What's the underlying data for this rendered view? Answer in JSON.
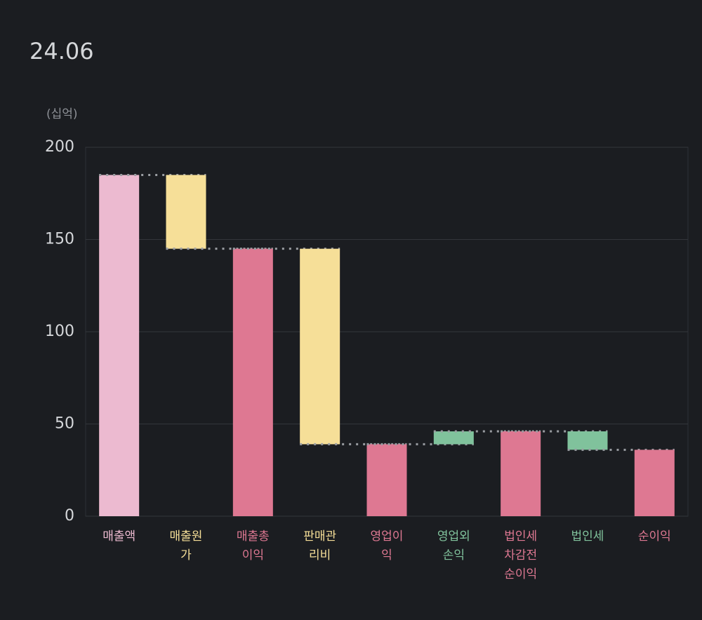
{
  "chart_data": {
    "type": "waterfall",
    "title": "24.06",
    "y_label": "(십억)",
    "categories": [
      "매출액",
      "매출원가",
      "매출총이익",
      "판매관리비",
      "영업이익",
      "영업외손익",
      "법인세차감전순이익",
      "법인세",
      "순이익"
    ],
    "values": [
      185,
      -40,
      145,
      -106,
      39,
      7,
      46,
      -10,
      36
    ],
    "measures": [
      "total",
      "relative",
      "total",
      "relative",
      "total",
      "relative",
      "total",
      "relative",
      "total"
    ],
    "colors": [
      "#ecbad0",
      "#f6df98",
      "#de7892",
      "#f6df98",
      "#de7892",
      "#80c29c",
      "#de7892",
      "#80c29c",
      "#de7892"
    ],
    "ylim": [
      0,
      200
    ],
    "yticks": [
      0,
      50,
      100,
      150,
      200
    ],
    "grid": true
  }
}
